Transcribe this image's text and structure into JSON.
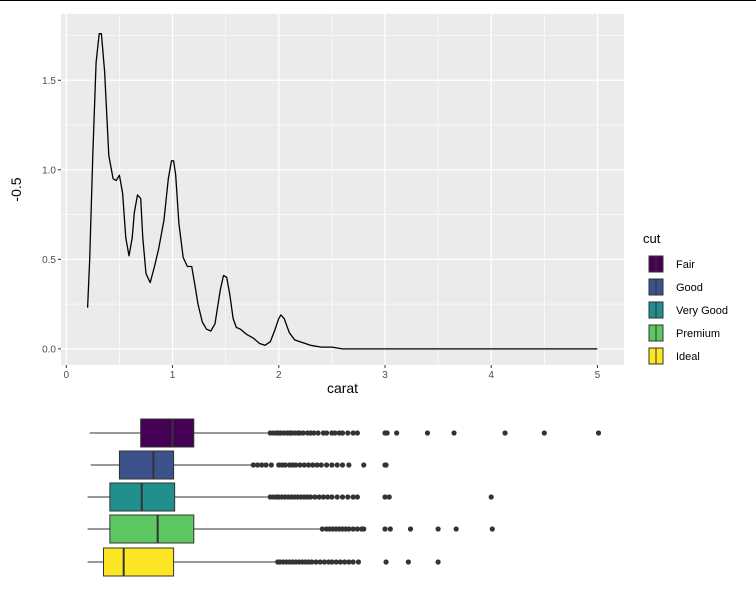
{
  "chart_data": [
    {
      "type": "line",
      "xlabel": "carat",
      "ylabel": "-0.5",
      "xlim": [
        -0.05,
        5.25
      ],
      "ylim": [
        -0.09,
        1.87
      ],
      "x_ticks": [
        0,
        1,
        2,
        3,
        4,
        5
      ],
      "x_tick_labels": [
        "0",
        "1",
        "2",
        "3",
        "4",
        "5"
      ],
      "y_ticks": [
        0.0,
        0.5,
        1.0,
        1.5
      ],
      "y_tick_labels": [
        "0.0",
        "0.5",
        "1.0",
        "1.5"
      ],
      "grid": true,
      "background": "#ebebeb",
      "series": [
        {
          "color": "#000000",
          "x": [
            0.2,
            0.22,
            0.25,
            0.28,
            0.31,
            0.33,
            0.36,
            0.4,
            0.44,
            0.47,
            0.5,
            0.53,
            0.56,
            0.59,
            0.62,
            0.64,
            0.67,
            0.7,
            0.72,
            0.75,
            0.79,
            0.83,
            0.87,
            0.92,
            0.96,
            0.99,
            1.01,
            1.03,
            1.06,
            1.1,
            1.14,
            1.18,
            1.21,
            1.24,
            1.28,
            1.32,
            1.36,
            1.4,
            1.45,
            1.48,
            1.51,
            1.54,
            1.57,
            1.6,
            1.64,
            1.7,
            1.76,
            1.82,
            1.87,
            1.92,
            1.96,
            2.0,
            2.02,
            2.05,
            2.1,
            2.15,
            2.2,
            2.3,
            2.4,
            2.5,
            2.6,
            2.7,
            2.8,
            2.9,
            3.0,
            3.1,
            3.2,
            3.5,
            4.0,
            4.5,
            5.0
          ],
          "y": [
            0.23,
            0.5,
            1.1,
            1.6,
            1.76,
            1.76,
            1.55,
            1.08,
            0.95,
            0.94,
            0.97,
            0.87,
            0.62,
            0.52,
            0.62,
            0.76,
            0.86,
            0.84,
            0.62,
            0.42,
            0.37,
            0.46,
            0.56,
            0.72,
            0.95,
            1.05,
            1.05,
            0.97,
            0.7,
            0.51,
            0.46,
            0.46,
            0.36,
            0.25,
            0.15,
            0.11,
            0.1,
            0.14,
            0.33,
            0.41,
            0.4,
            0.3,
            0.17,
            0.12,
            0.11,
            0.08,
            0.06,
            0.03,
            0.02,
            0.04,
            0.1,
            0.17,
            0.19,
            0.17,
            0.09,
            0.05,
            0.04,
            0.02,
            0.01,
            0.01,
            0.0,
            0.0,
            0.0,
            0.0,
            0.0,
            0.0,
            0.0,
            0.0,
            0.0,
            0.0,
            0.0
          ]
        }
      ]
    },
    {
      "type": "box",
      "orientation": "horizontal",
      "xlim": [
        -0.05,
        5.25
      ],
      "series": [
        {
          "name": "Fair",
          "color": "#440154",
          "whisker_low": 0.22,
          "q1": 0.7,
          "median": 1.0,
          "q3": 1.2,
          "whisker_high": 1.91,
          "outliers": [
            1.92,
            1.95,
            1.98,
            2.0,
            2.02,
            2.05,
            2.08,
            2.1,
            2.12,
            2.15,
            2.18,
            2.2,
            2.23,
            2.27,
            2.3,
            2.33,
            2.37,
            2.42,
            2.45,
            2.5,
            2.53,
            2.57,
            2.6,
            2.65,
            2.7,
            2.74,
            3.0,
            3.02,
            3.11,
            3.4,
            3.65,
            4.13,
            4.5,
            5.01
          ]
        },
        {
          "name": "Good",
          "color": "#3b528b",
          "whisker_low": 0.23,
          "q1": 0.5,
          "median": 0.82,
          "q3": 1.01,
          "whisker_high": 1.75,
          "outliers": [
            1.76,
            1.8,
            1.84,
            1.88,
            1.93,
            2.0,
            2.03,
            2.06,
            2.1,
            2.13,
            2.16,
            2.2,
            2.24,
            2.28,
            2.32,
            2.36,
            2.4,
            2.45,
            2.5,
            2.55,
            2.6,
            2.66,
            2.8,
            3.0,
            3.01
          ]
        },
        {
          "name": "Very Good",
          "color": "#21908c",
          "whisker_low": 0.2,
          "q1": 0.41,
          "median": 0.71,
          "q3": 1.02,
          "whisker_high": 1.91,
          "outliers": [
            1.92,
            1.95,
            1.98,
            2.0,
            2.03,
            2.06,
            2.09,
            2.12,
            2.15,
            2.18,
            2.21,
            2.24,
            2.27,
            2.3,
            2.34,
            2.38,
            2.42,
            2.46,
            2.5,
            2.55,
            2.6,
            2.65,
            2.7,
            2.74,
            3.0,
            3.04,
            4.0
          ]
        },
        {
          "name": "Premium",
          "color": "#5dc863",
          "whisker_low": 0.2,
          "q1": 0.41,
          "median": 0.86,
          "q3": 1.2,
          "whisker_high": 2.4,
          "outliers": [
            2.41,
            2.45,
            2.48,
            2.51,
            2.54,
            2.57,
            2.6,
            2.63,
            2.66,
            2.7,
            2.74,
            2.78,
            2.8,
            3.0,
            3.05,
            3.24,
            3.5,
            3.67,
            4.01
          ]
        },
        {
          "name": "Ideal",
          "color": "#fde725",
          "whisker_low": 0.2,
          "q1": 0.35,
          "median": 0.54,
          "q3": 1.01,
          "whisker_high": 1.98,
          "outliers": [
            1.99,
            2.01,
            2.04,
            2.07,
            2.1,
            2.13,
            2.16,
            2.19,
            2.22,
            2.25,
            2.28,
            2.31,
            2.35,
            2.39,
            2.43,
            2.47,
            2.5,
            2.54,
            2.58,
            2.62,
            2.66,
            2.7,
            2.75,
            3.01,
            3.22,
            3.5
          ]
        }
      ]
    }
  ],
  "legend": {
    "title": "cut",
    "placement": "right",
    "items": [
      {
        "label": "Fair",
        "color": "#440154"
      },
      {
        "label": "Good",
        "color": "#3b528b"
      },
      {
        "label": "Very Good",
        "color": "#21908c"
      },
      {
        "label": "Premium",
        "color": "#5dc863"
      },
      {
        "label": "Ideal",
        "color": "#fde725"
      }
    ]
  }
}
